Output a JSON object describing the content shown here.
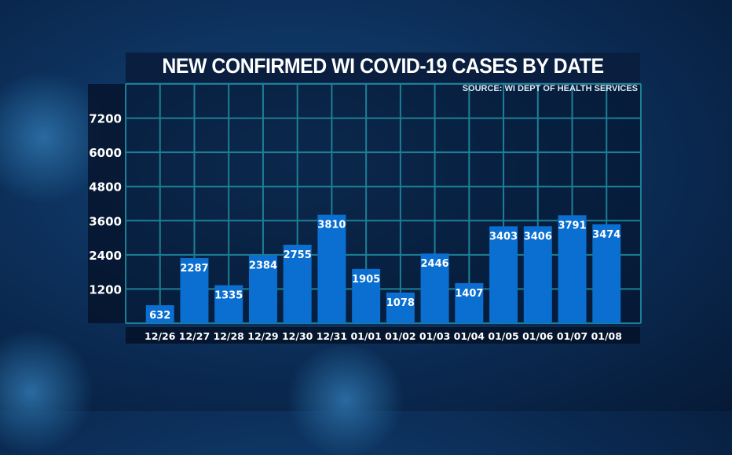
{
  "chart_data": {
    "type": "bar",
    "title": "NEW CONFIRMED WI COVID-19 CASES BY DATE",
    "source": "SOURCE: WI DEPT OF HEALTH SERVICES",
    "categories": [
      "12/26",
      "12/27",
      "12/28",
      "12/29",
      "12/30",
      "12/31",
      "01/01",
      "01/02",
      "01/03",
      "01/04",
      "01/05",
      "01/06",
      "01/07",
      "01/08"
    ],
    "values": [
      632,
      2287,
      1335,
      2384,
      2755,
      3810,
      1905,
      1078,
      2446,
      1407,
      3403,
      3406,
      3791,
      3474
    ],
    "yticks": [
      1200,
      2400,
      3600,
      4800,
      6000,
      7200
    ],
    "ylim": [
      0,
      8400
    ],
    "xlabel": "",
    "ylabel": "",
    "grid": true,
    "colors": {
      "bar": "#0a6fd0",
      "grid": "#1d7f95"
    }
  }
}
